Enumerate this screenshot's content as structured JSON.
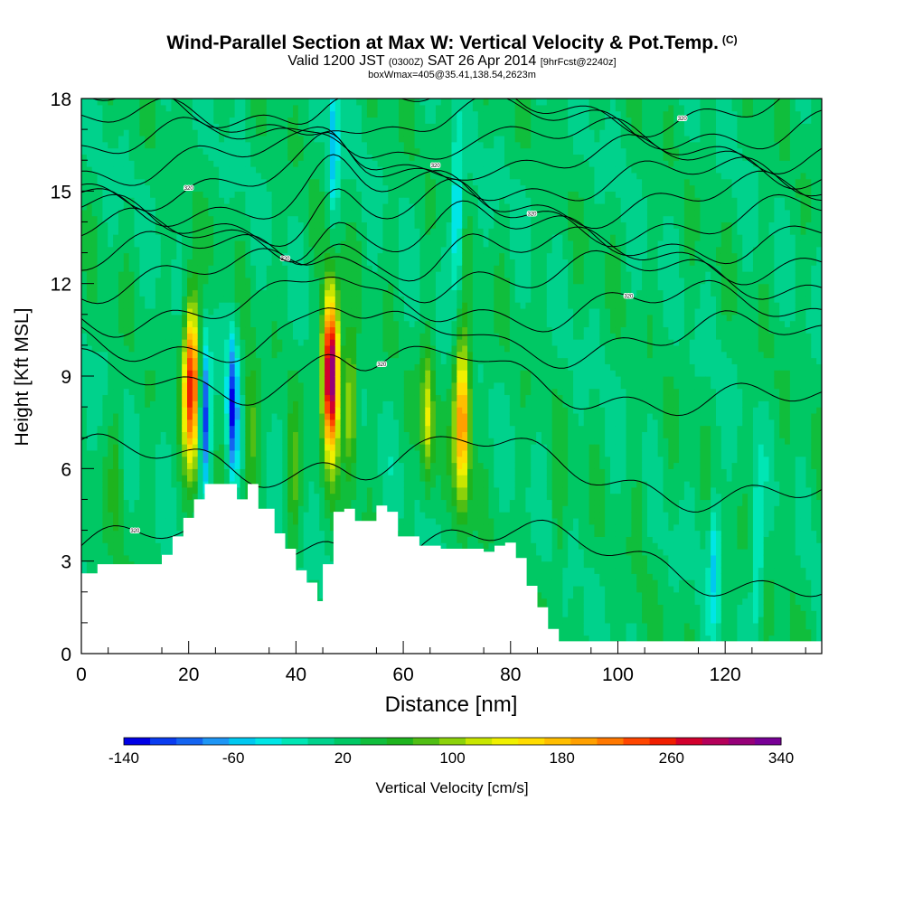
{
  "header": {
    "title": "Wind-Parallel Section at Max W: Vertical Velocity & Pot.Temp.",
    "title_mark": "(C)",
    "valid_prefix": "Valid 1200 JST",
    "valid_utc": "(0300Z)",
    "valid_date": "SAT 26 Apr 2014",
    "forecast": "[9hrFcst@2240z]",
    "box_info": "boxWmax=405@35.41,138.54,2623m"
  },
  "chart_data": {
    "type": "heatmap",
    "xlabel": "Distance [nm]",
    "ylabel": "Height [Kft MSL]",
    "xlim": [
      0,
      138
    ],
    "ylim": [
      0,
      18
    ],
    "x_ticks": [
      "0",
      "20",
      "40",
      "60",
      "80",
      "100",
      "120"
    ],
    "y_ticks": [
      "0",
      "3",
      "6",
      "9",
      "12",
      "15",
      "18"
    ],
    "colorbar": {
      "label": "Vertical Velocity [cm/s]",
      "range": [
        -140,
        340
      ],
      "tick_labels": [
        "-140",
        "-60",
        "20",
        "100",
        "180",
        "260",
        "340"
      ],
      "colors": [
        "#0000e6",
        "#0a3cf0",
        "#1464f0",
        "#1e96f5",
        "#00c8f0",
        "#00e6e6",
        "#00e6b4",
        "#00d28c",
        "#00c864",
        "#10be3c",
        "#1eb41e",
        "#50be14",
        "#8cd20a",
        "#c8e600",
        "#f0f000",
        "#ffdc00",
        "#ffbe00",
        "#ffa000",
        "#ff7800",
        "#ff4600",
        "#f01e00",
        "#d2002d",
        "#b4005a",
        "#960078",
        "#780096"
      ]
    },
    "terrain_kft": [
      [
        0,
        2.6
      ],
      [
        2,
        2.9
      ],
      [
        14,
        3.2
      ],
      [
        16,
        3.8
      ],
      [
        18,
        4.4
      ],
      [
        20,
        5.0
      ],
      [
        22,
        5.5
      ],
      [
        26,
        5.5
      ],
      [
        28,
        5.0
      ],
      [
        30,
        5.5
      ],
      [
        32,
        4.7
      ],
      [
        35,
        3.9
      ],
      [
        37,
        3.4
      ],
      [
        39,
        2.7
      ],
      [
        41,
        2.3
      ],
      [
        43,
        1.7
      ],
      [
        44,
        2.9
      ],
      [
        46,
        4.6
      ],
      [
        48,
        4.7
      ],
      [
        50,
        4.3
      ],
      [
        54,
        4.8
      ],
      [
        56,
        4.6
      ],
      [
        58,
        3.8
      ],
      [
        62,
        3.5
      ],
      [
        66,
        3.4
      ],
      [
        70,
        3.4
      ],
      [
        74,
        3.3
      ],
      [
        76,
        3.5
      ],
      [
        78,
        3.6
      ],
      [
        80,
        3.1
      ],
      [
        82,
        2.2
      ],
      [
        84,
        1.5
      ],
      [
        86,
        0.8
      ],
      [
        88,
        0.4
      ],
      [
        138,
        0.4
      ]
    ],
    "updrafts": [
      {
        "x": 20.5,
        "z": 8.8,
        "peak_w": 265
      },
      {
        "x": 46.5,
        "z": 9.2,
        "peak_w": 340
      },
      {
        "x": 50.2,
        "z": 8.0,
        "peak_w": 130
      },
      {
        "x": 64.5,
        "z": 7.6,
        "peak_w": 130
      },
      {
        "x": 71.0,
        "z": 7.6,
        "peak_w": 220
      },
      {
        "x": 6.5,
        "z": 6.0,
        "peak_w": 60
      },
      {
        "x": 31.5,
        "z": 7.2,
        "peak_w": 95
      },
      {
        "x": 39.5,
        "z": 5.5,
        "peak_w": 80
      },
      {
        "x": 89.0,
        "z": 4.0,
        "peak_w": 45
      },
      {
        "x": 104.0,
        "z": 4.5,
        "peak_w": 40
      },
      {
        "x": 132.0,
        "z": 3.0,
        "peak_w": 35
      }
    ],
    "downdrafts": [
      {
        "x": 23.0,
        "z": 7.6,
        "peak_w": -110
      },
      {
        "x": 28.2,
        "z": 8.0,
        "peak_w": -120
      },
      {
        "x": 47.0,
        "z": 16.5,
        "peak_w": -60
      },
      {
        "x": 70.0,
        "z": 14.0,
        "peak_w": -60
      },
      {
        "x": 118.0,
        "z": 3.2,
        "peak_w": -45
      },
      {
        "x": 126.0,
        "z": 3.0,
        "peak_w": -40
      }
    ],
    "theta_label_text": "320"
  }
}
